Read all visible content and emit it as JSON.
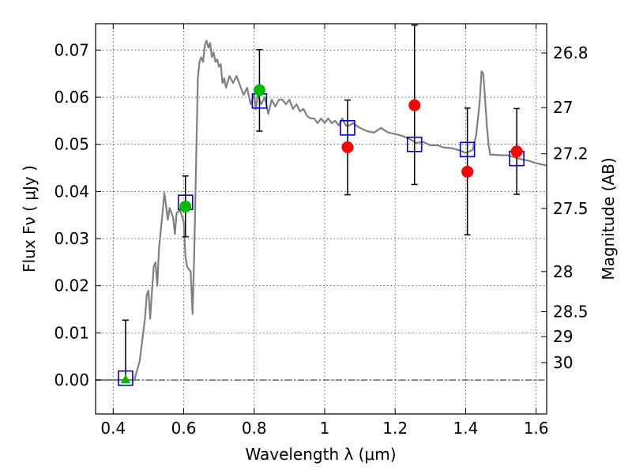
{
  "chart_data": {
    "type": "scatter",
    "title": "",
    "xlabel": "Wavelength  λ (μm)",
    "ylabel": "Flux  Fν  ( μJy )",
    "y2label": "Magnitude (AB)",
    "xlim": [
      0.35,
      1.63
    ],
    "ylim": [
      -0.0072,
      0.0756
    ],
    "grid": true,
    "grid_style": "dotted",
    "legend": "none",
    "x_ticks": [
      0.4,
      0.6,
      0.8,
      1.0,
      1.2,
      1.4,
      1.6
    ],
    "x_tick_labels": [
      "0.4",
      "0.6",
      "0.8",
      "1",
      "1.2",
      "1.4",
      "1.6"
    ],
    "y_ticks": [
      0.0,
      0.01,
      0.02,
      0.03,
      0.04,
      0.05,
      0.06,
      0.07
    ],
    "y_tick_labels": [
      "0.00",
      "0.01",
      "0.02",
      "0.03",
      "0.04",
      "0.05",
      "0.06",
      "0.07"
    ],
    "magnitude_ticks": [
      {
        "label": "26.8",
        "flux": 0.0694
      },
      {
        "label": "27",
        "flux": 0.0578
      },
      {
        "label": "27.2",
        "flux": 0.048
      },
      {
        "label": "27.5",
        "flux": 0.0364
      },
      {
        "label": "28",
        "flux": 0.023
      },
      {
        "label": "28.5",
        "flux": 0.0145
      },
      {
        "label": "29",
        "flux": 0.0092
      },
      {
        "label": "30",
        "flux": 0.0037
      }
    ],
    "zero_line": {
      "y": 0.0,
      "style": "dash-dot"
    },
    "series": [
      {
        "kind": "model_spectrum",
        "color": "#808080",
        "points": [
          [
            0.35,
            0.0
          ],
          [
            0.44,
            0.0
          ],
          [
            0.46,
            0.0
          ],
          [
            0.475,
            0.004
          ],
          [
            0.49,
            0.013
          ],
          [
            0.495,
            0.018
          ],
          [
            0.5,
            0.019
          ],
          [
            0.505,
            0.013
          ],
          [
            0.51,
            0.019
          ],
          [
            0.515,
            0.024
          ],
          [
            0.52,
            0.025
          ],
          [
            0.525,
            0.02
          ],
          [
            0.53,
            0.028
          ],
          [
            0.54,
            0.0355
          ],
          [
            0.545,
            0.0397
          ],
          [
            0.55,
            0.037
          ],
          [
            0.555,
            0.034
          ],
          [
            0.56,
            0.0365
          ],
          [
            0.57,
            0.0345
          ],
          [
            0.575,
            0.031
          ],
          [
            0.58,
            0.0355
          ],
          [
            0.59,
            0.036
          ],
          [
            0.6,
            0.0335
          ],
          [
            0.605,
            0.026
          ],
          [
            0.61,
            0.024
          ],
          [
            0.62,
            0.023
          ],
          [
            0.625,
            0.014
          ],
          [
            0.63,
            0.027
          ],
          [
            0.635,
            0.045
          ],
          [
            0.64,
            0.064
          ],
          [
            0.645,
            0.0675
          ],
          [
            0.65,
            0.0685
          ],
          [
            0.655,
            0.0675
          ],
          [
            0.66,
            0.071
          ],
          [
            0.665,
            0.072
          ],
          [
            0.67,
            0.0705
          ],
          [
            0.675,
            0.0715
          ],
          [
            0.68,
            0.0685
          ],
          [
            0.685,
            0.0695
          ],
          [
            0.69,
            0.0675
          ],
          [
            0.695,
            0.068
          ],
          [
            0.7,
            0.0665
          ],
          [
            0.705,
            0.067
          ],
          [
            0.71,
            0.063
          ],
          [
            0.715,
            0.064
          ],
          [
            0.72,
            0.062
          ],
          [
            0.73,
            0.0645
          ],
          [
            0.74,
            0.063
          ],
          [
            0.75,
            0.0645
          ],
          [
            0.76,
            0.0625
          ],
          [
            0.77,
            0.0605
          ],
          [
            0.78,
            0.062
          ],
          [
            0.79,
            0.0585
          ],
          [
            0.8,
            0.0605
          ],
          [
            0.805,
            0.0575
          ],
          [
            0.81,
            0.0605
          ],
          [
            0.82,
            0.0585
          ],
          [
            0.83,
            0.06
          ],
          [
            0.84,
            0.0565
          ],
          [
            0.85,
            0.0595
          ],
          [
            0.86,
            0.058
          ],
          [
            0.87,
            0.0595
          ],
          [
            0.88,
            0.0595
          ],
          [
            0.89,
            0.0585
          ],
          [
            0.9,
            0.0595
          ],
          [
            0.91,
            0.0575
          ],
          [
            0.92,
            0.0585
          ],
          [
            0.93,
            0.057
          ],
          [
            0.94,
            0.0575
          ],
          [
            0.95,
            0.056
          ],
          [
            0.96,
            0.0555
          ],
          [
            0.97,
            0.0555
          ],
          [
            0.98,
            0.0545
          ],
          [
            0.99,
            0.0555
          ],
          [
            1.0,
            0.0545
          ],
          [
            1.01,
            0.0555
          ],
          [
            1.02,
            0.0545
          ],
          [
            1.03,
            0.055
          ],
          [
            1.04,
            0.054
          ],
          [
            1.05,
            0.0555
          ],
          [
            1.06,
            0.054
          ],
          [
            1.07,
            0.054
          ],
          [
            1.08,
            0.0545
          ],
          [
            1.1,
            0.0535
          ],
          [
            1.12,
            0.0528
          ],
          [
            1.14,
            0.0525
          ],
          [
            1.16,
            0.0535
          ],
          [
            1.18,
            0.0525
          ],
          [
            1.2,
            0.0522
          ],
          [
            1.22,
            0.0518
          ],
          [
            1.24,
            0.0512
          ],
          [
            1.26,
            0.0503
          ],
          [
            1.28,
            0.0505
          ],
          [
            1.3,
            0.0498
          ],
          [
            1.32,
            0.0498
          ],
          [
            1.34,
            0.0493
          ],
          [
            1.36,
            0.0492
          ],
          [
            1.38,
            0.0488
          ],
          [
            1.4,
            0.0482
          ],
          [
            1.42,
            0.0488
          ],
          [
            1.43,
            0.052
          ],
          [
            1.44,
            0.059
          ],
          [
            1.445,
            0.0655
          ],
          [
            1.45,
            0.065
          ],
          [
            1.455,
            0.06
          ],
          [
            1.46,
            0.054
          ],
          [
            1.465,
            0.05
          ],
          [
            1.47,
            0.0478
          ],
          [
            1.48,
            0.0478
          ],
          [
            1.5,
            0.0477
          ],
          [
            1.52,
            0.0477
          ],
          [
            1.54,
            0.0472
          ],
          [
            1.56,
            0.0468
          ],
          [
            1.58,
            0.0465
          ],
          [
            1.6,
            0.046
          ],
          [
            1.63,
            0.0455
          ]
        ]
      },
      {
        "kind": "model_band_flux",
        "marker": "open-square",
        "color": "#0000cc",
        "points": [
          [
            0.435,
            0.0004
          ],
          [
            0.605,
            0.0377
          ],
          [
            0.815,
            0.0592
          ],
          [
            1.065,
            0.0535
          ],
          [
            1.255,
            0.05
          ],
          [
            1.405,
            0.0489
          ],
          [
            1.545,
            0.047
          ]
        ]
      },
      {
        "kind": "observed_flux",
        "color": "#00bb00",
        "points": [
          {
            "x": 0.435,
            "y": 0.0,
            "marker": "triangle",
            "yerr": [
              0.0,
              0.0127
            ]
          },
          {
            "x": 0.605,
            "y": 0.0368,
            "marker": "circle",
            "yerr": [
              0.0304,
              0.0433
            ]
          },
          {
            "x": 0.815,
            "y": 0.0615,
            "marker": "circle",
            "yerr": [
              0.0528,
              0.0701
            ]
          }
        ]
      },
      {
        "kind": "observed_flux",
        "color": "#ff0000",
        "points": [
          {
            "x": 1.065,
            "y": 0.0494,
            "marker": "circle",
            "yerr": [
              0.0393,
              0.0594
            ]
          },
          {
            "x": 1.255,
            "y": 0.0583,
            "marker": "circle",
            "yerr": [
              0.0415,
              0.0753
            ]
          },
          {
            "x": 1.405,
            "y": 0.0442,
            "marker": "circle",
            "yerr": [
              0.0308,
              0.0577
            ]
          },
          {
            "x": 1.545,
            "y": 0.0485,
            "marker": "circle",
            "yerr": [
              0.0394,
              0.0576
            ]
          }
        ]
      }
    ]
  }
}
